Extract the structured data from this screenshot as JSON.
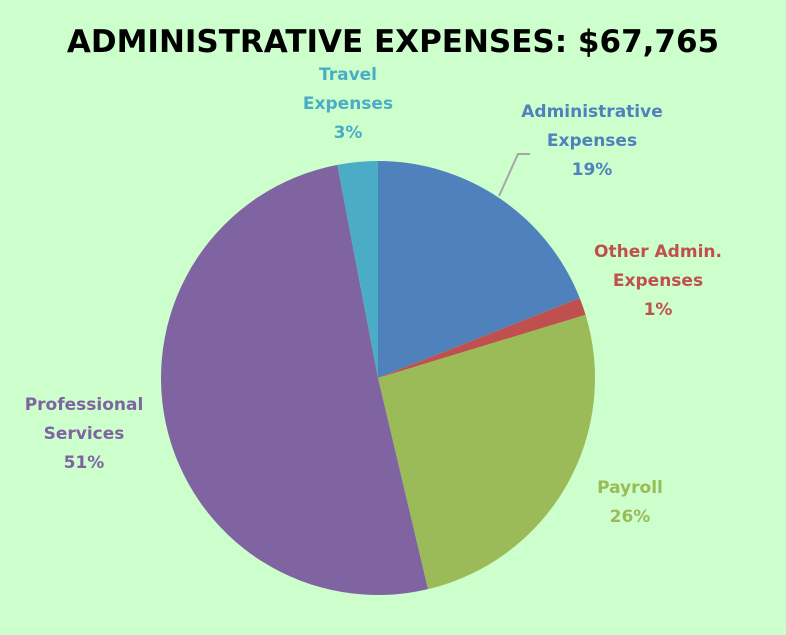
{
  "chart_data": {
    "type": "pie",
    "title": "ADMINISTRATIVE EXPENSES: $67,765",
    "start": "top, clockwise",
    "slices": [
      {
        "name": "Administrative Expenses",
        "lines": [
          "Administrative",
          "Expenses"
        ],
        "label": "19%",
        "value": 19,
        "color": "#4f81bd"
      },
      {
        "name": "Other Admin. Expenses",
        "lines": [
          "Other Admin.",
          "Expenses"
        ],
        "label": "1%",
        "value": 1.3,
        "color": "#c0504d"
      },
      {
        "name": "Payroll",
        "lines": [
          "Payroll"
        ],
        "label": "26%",
        "value": 26,
        "color": "#9bbb59"
      },
      {
        "name": "Professional Services",
        "lines": [
          "Professional",
          "Services"
        ],
        "label": "51%",
        "value": 50.7,
        "color": "#8064a2"
      },
      {
        "name": "Travel Expenses",
        "lines": [
          "Travel",
          "Expenses"
        ],
        "label": "3%",
        "value": 3,
        "color": "#4bacc6"
      }
    ]
  }
}
